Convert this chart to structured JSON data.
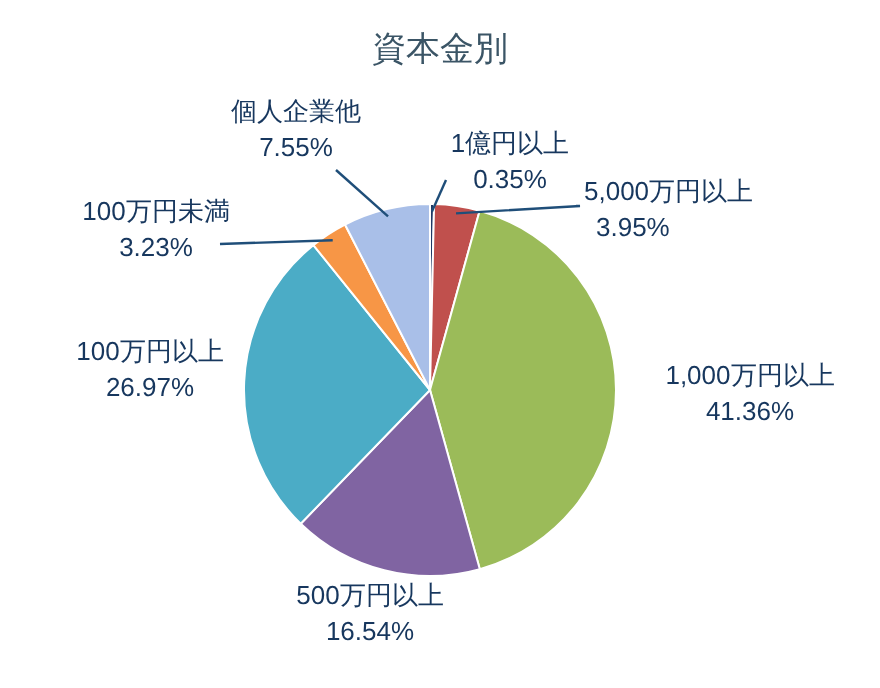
{
  "chart_data": {
    "type": "pie",
    "title": "資本金別",
    "categories": [
      "1億円以上",
      "5,000万円以上",
      "1,000万円以上",
      "500万円以上",
      "100万円以上",
      "100万円未満",
      "個人企業他"
    ],
    "values": [
      0.35,
      3.95,
      41.36,
      16.54,
      26.97,
      3.23,
      7.55
    ],
    "value_labels": [
      "0.35%",
      "3.95%",
      "41.36%",
      "16.54%",
      "26.97%",
      "3.23%",
      "7.55%"
    ],
    "colors": [
      "#1f3864",
      "#c0504d",
      "#9bbb59",
      "#8064a2",
      "#4bacc6",
      "#f79646",
      "#a9bfe8"
    ]
  }
}
